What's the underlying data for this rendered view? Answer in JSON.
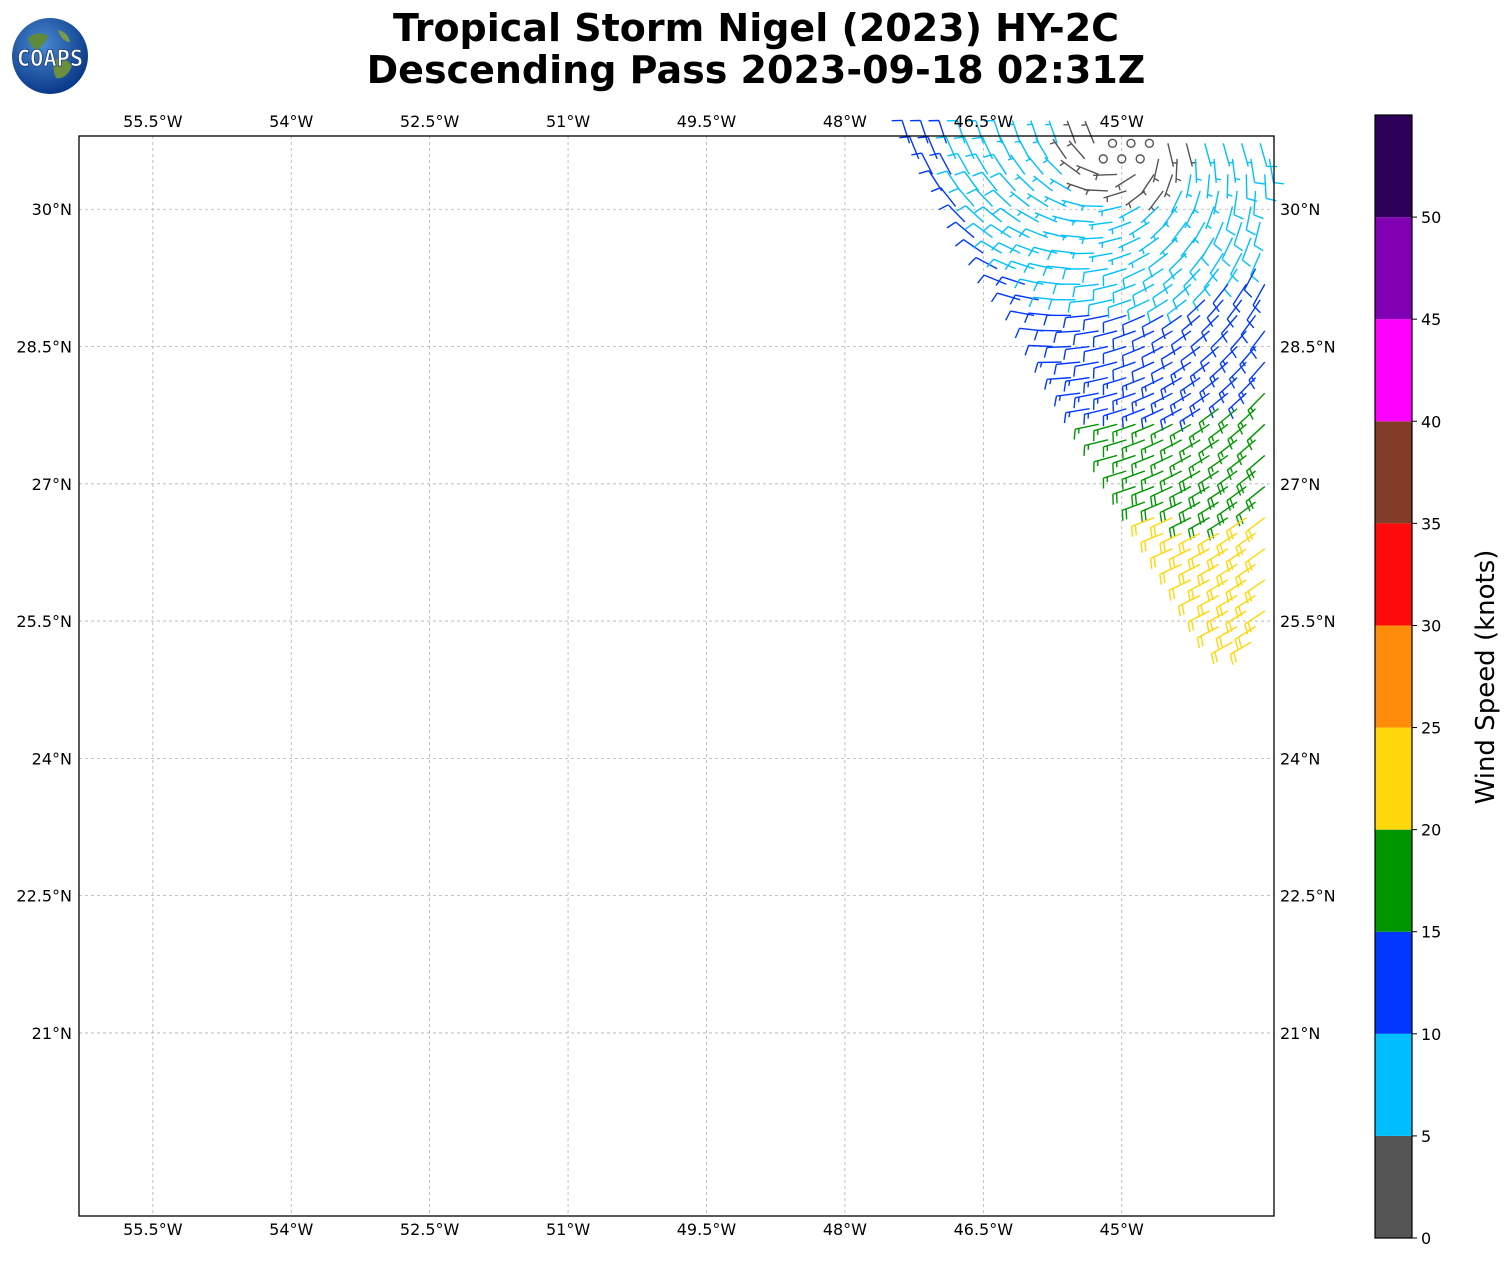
{
  "figure": {
    "title_line1": "Tropical Storm Nigel (2023) HY-2C",
    "title_line2": "Descending Pass 2023-09-18 02:31Z",
    "logo_text": "COAPS"
  },
  "map": {
    "lon_range": [
      -56.3,
      -43.35
    ],
    "lat_range": [
      19.0,
      30.8
    ],
    "lon_ticks": [
      {
        "value": -55.5,
        "label": "55.5°W"
      },
      {
        "value": -54.0,
        "label": "54°W"
      },
      {
        "value": -52.5,
        "label": "52.5°W"
      },
      {
        "value": -51.0,
        "label": "51°W"
      },
      {
        "value": -49.5,
        "label": "49.5°W"
      },
      {
        "value": -48.0,
        "label": "48°W"
      },
      {
        "value": -46.5,
        "label": "46.5°W"
      },
      {
        "value": -45.0,
        "label": "45°W"
      }
    ],
    "lat_ticks": [
      {
        "value": 30.0,
        "label": "30°N"
      },
      {
        "value": 28.5,
        "label": "28.5°N"
      },
      {
        "value": 27.0,
        "label": "27°N"
      },
      {
        "value": 25.5,
        "label": "25.5°N"
      },
      {
        "value": 24.0,
        "label": "24°N"
      },
      {
        "value": 22.5,
        "label": "22.5°N"
      },
      {
        "value": 21.0,
        "label": "21°N"
      }
    ],
    "grid": true,
    "swath": {
      "description_free": true,
      "rows": [
        {
          "lat": 30.72,
          "lon_start": -47.3,
          "lon_end": -43.4
        },
        {
          "lat": 30.55,
          "lon_start": -47.2,
          "lon_end": -43.4
        },
        {
          "lat": 30.38,
          "lon_start": -47.05,
          "lon_end": -43.4
        },
        {
          "lat": 30.2,
          "lon_start": -46.95,
          "lon_end": -43.45
        },
        {
          "lat": 30.03,
          "lon_start": -46.8,
          "lon_end": -43.45
        },
        {
          "lat": 29.86,
          "lon_start": -46.7,
          "lon_end": -43.45
        },
        {
          "lat": 29.69,
          "lon_start": -46.6,
          "lon_end": -43.45
        },
        {
          "lat": 29.52,
          "lon_start": -46.5,
          "lon_end": -43.45
        },
        {
          "lat": 29.35,
          "lon_start": -46.35,
          "lon_end": -43.45
        },
        {
          "lat": 29.18,
          "lon_start": -46.25,
          "lon_end": -43.45
        },
        {
          "lat": 29.01,
          "lon_start": -46.1,
          "lon_end": -43.45
        },
        {
          "lat": 28.84,
          "lon_start": -45.95,
          "lon_end": -43.45
        },
        {
          "lat": 28.67,
          "lon_start": -45.85,
          "lon_end": -43.45
        },
        {
          "lat": 28.5,
          "lon_start": -45.75,
          "lon_end": -43.45
        },
        {
          "lat": 28.33,
          "lon_start": -45.65,
          "lon_end": -43.45
        },
        {
          "lat": 28.16,
          "lon_start": -45.55,
          "lon_end": -43.45
        },
        {
          "lat": 27.99,
          "lon_start": -45.45,
          "lon_end": -43.45
        },
        {
          "lat": 27.82,
          "lon_start": -45.35,
          "lon_end": -43.45
        },
        {
          "lat": 27.65,
          "lon_start": -45.25,
          "lon_end": -43.45
        },
        {
          "lat": 27.48,
          "lon_start": -45.15,
          "lon_end": -43.45
        },
        {
          "lat": 27.31,
          "lon_start": -45.05,
          "lon_end": -43.45
        },
        {
          "lat": 27.14,
          "lon_start": -44.95,
          "lon_end": -43.45
        },
        {
          "lat": 26.97,
          "lon_start": -44.85,
          "lon_end": -43.45
        },
        {
          "lat": 26.8,
          "lon_start": -44.75,
          "lon_end": -43.45
        },
        {
          "lat": 26.63,
          "lon_start": -44.65,
          "lon_end": -43.45
        },
        {
          "lat": 26.46,
          "lon_start": -44.55,
          "lon_end": -43.45
        },
        {
          "lat": 26.29,
          "lon_start": -44.45,
          "lon_end": -43.45
        },
        {
          "lat": 26.12,
          "lon_start": -44.35,
          "lon_end": -43.45
        },
        {
          "lat": 25.95,
          "lon_start": -44.25,
          "lon_end": -43.45
        },
        {
          "lat": 25.78,
          "lon_start": -44.15,
          "lon_end": -43.45
        },
        {
          "lat": 25.61,
          "lon_start": -44.05,
          "lon_end": -43.45
        },
        {
          "lat": 25.44,
          "lon_start": -43.95,
          "lon_end": -43.45
        },
        {
          "lat": 25.27,
          "lon_start": -43.8,
          "lon_end": -43.45
        }
      ],
      "center": {
        "lat": 30.75,
        "lon": -44.95
      },
      "calm_center_speed_kt": 2
    }
  },
  "colorbar": {
    "label": "Wind Speed (knots)",
    "levels": [
      {
        "min": 0,
        "max": 5,
        "color": "#555555"
      },
      {
        "min": 5,
        "max": 10,
        "color": "#00bfff"
      },
      {
        "min": 10,
        "max": 15,
        "color": "#0038ff"
      },
      {
        "min": 15,
        "max": 20,
        "color": "#009600"
      },
      {
        "min": 20,
        "max": 25,
        "color": "#ffd70a"
      },
      {
        "min": 25,
        "max": 30,
        "color": "#ff8c0a"
      },
      {
        "min": 30,
        "max": 35,
        "color": "#ff0a0a"
      },
      {
        "min": 35,
        "max": 40,
        "color": "#823c28"
      },
      {
        "min": 40,
        "max": 45,
        "color": "#ff00ff"
      },
      {
        "min": 45,
        "max": 50,
        "color": "#8200b4"
      },
      {
        "min": 50,
        "max": 55,
        "color": "#2d005a"
      }
    ],
    "tick_labels": [
      "0",
      "5",
      "10",
      "15",
      "20",
      "25",
      "30",
      "35",
      "40",
      "45",
      "50"
    ]
  }
}
